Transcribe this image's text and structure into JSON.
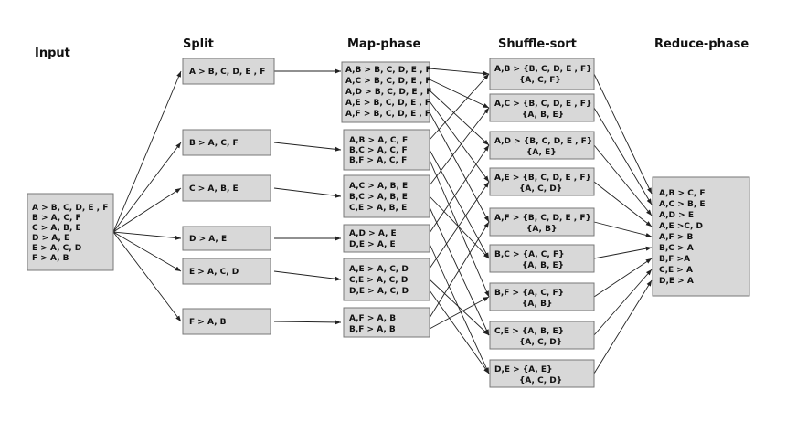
{
  "headers": {
    "input": "Input",
    "split": "Split",
    "map": "Map-phase",
    "shuffle": "Shuffle-sort",
    "reduce": "Reduce-phase"
  },
  "input": {
    "lines": [
      "A > B, C, D, E , F",
      "B > A, C, F",
      "C > A, B, E",
      "D > A, E",
      "E > A, C, D",
      "F > A, B"
    ]
  },
  "split": [
    {
      "lines": [
        "A > B, C, D, E , F"
      ]
    },
    {
      "lines": [
        "B > A, C, F"
      ]
    },
    {
      "lines": [
        "C > A, B, E"
      ]
    },
    {
      "lines": [
        "D > A, E"
      ]
    },
    {
      "lines": [
        "E > A, C, D"
      ]
    },
    {
      "lines": [
        "F > A, B"
      ]
    }
  ],
  "map": [
    {
      "lines": [
        "A,B > B, C, D, E , F",
        "A,C > B, C, D, E , F",
        "A,D > B, C, D, E , F",
        "A,E > B, C, D, E , F",
        "A,F > B, C, D, E , F"
      ]
    },
    {
      "lines": [
        "A,B > A, C, F",
        "B,C > A, C, F",
        "B,F > A, C, F"
      ]
    },
    {
      "lines": [
        "A,C > A, B, E",
        "B,C > A, B, E",
        "C,E > A, B, E"
      ]
    },
    {
      "lines": [
        "A,D > A, E",
        "D,E > A, E"
      ]
    },
    {
      "lines": [
        "A,E > A, C, D",
        "C,E > A, C, D",
        "D,E > A, C, D"
      ]
    },
    {
      "lines": [
        "A,F > A, B",
        "B,F > A, B"
      ]
    }
  ],
  "shuffle": [
    {
      "lines": [
        "A,B > {B, C, D, E , F}",
        "{A, C, F}"
      ]
    },
    {
      "lines": [
        "A,C > {B, C, D, E , F}",
        "{A, B, E}"
      ]
    },
    {
      "lines": [
        "A,D > {B, C, D, E , F}",
        "{A, E}"
      ]
    },
    {
      "lines": [
        "A,E > {B, C, D, E , F}",
        "{A, C, D}"
      ]
    },
    {
      "lines": [
        "A,F > {B, C, D, E , F}",
        "{A, B}"
      ]
    },
    {
      "lines": [
        "B,C > {A, C, F}",
        "{A, B, E}"
      ]
    },
    {
      "lines": [
        "B,F > {A, C, F}",
        "{A, B}"
      ]
    },
    {
      "lines": [
        "C,E > {A, B, E}",
        "{A, C, D}"
      ]
    },
    {
      "lines": [
        "D,E > {A, E}",
        "{A, C, D}"
      ]
    }
  ],
  "reduce": {
    "lines": [
      "A,B > C, F",
      "A,C > B, E",
      "A,D > E",
      "A,E >C, D",
      "A,F > B",
      "B,C > A",
      "B,F >A",
      "C,E > A",
      "D,E > A"
    ]
  }
}
